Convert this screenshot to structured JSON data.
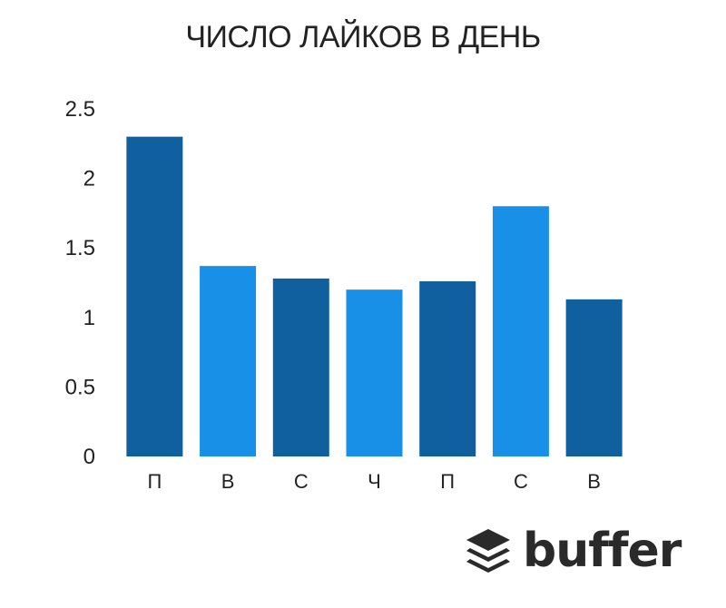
{
  "chart_data": {
    "type": "bar",
    "title": "ЧИСЛО ЛАЙКОВ В ДЕНЬ",
    "xlabel": "",
    "ylabel": "",
    "categories": [
      "П",
      "В",
      "С",
      "Ч",
      "П",
      "С",
      "В"
    ],
    "values": [
      2.3,
      1.37,
      1.28,
      1.2,
      1.26,
      1.8,
      1.13
    ],
    "ylim": [
      0,
      2.5
    ],
    "yticks": [
      0,
      0.5,
      1,
      1.5,
      2,
      2.5
    ],
    "ytick_labels": [
      "0",
      "0.5",
      "1",
      "1.5",
      "2",
      "2.5"
    ],
    "grid": false,
    "legend": "none",
    "colors": {
      "dark_bar": "#1060A0",
      "light_bar": "#1890E8",
      "bar_pattern": [
        "dark",
        "light",
        "dark",
        "light",
        "dark",
        "light",
        "dark"
      ]
    }
  },
  "brand": {
    "name": "buffer",
    "icon": "stacked-layers-icon"
  }
}
